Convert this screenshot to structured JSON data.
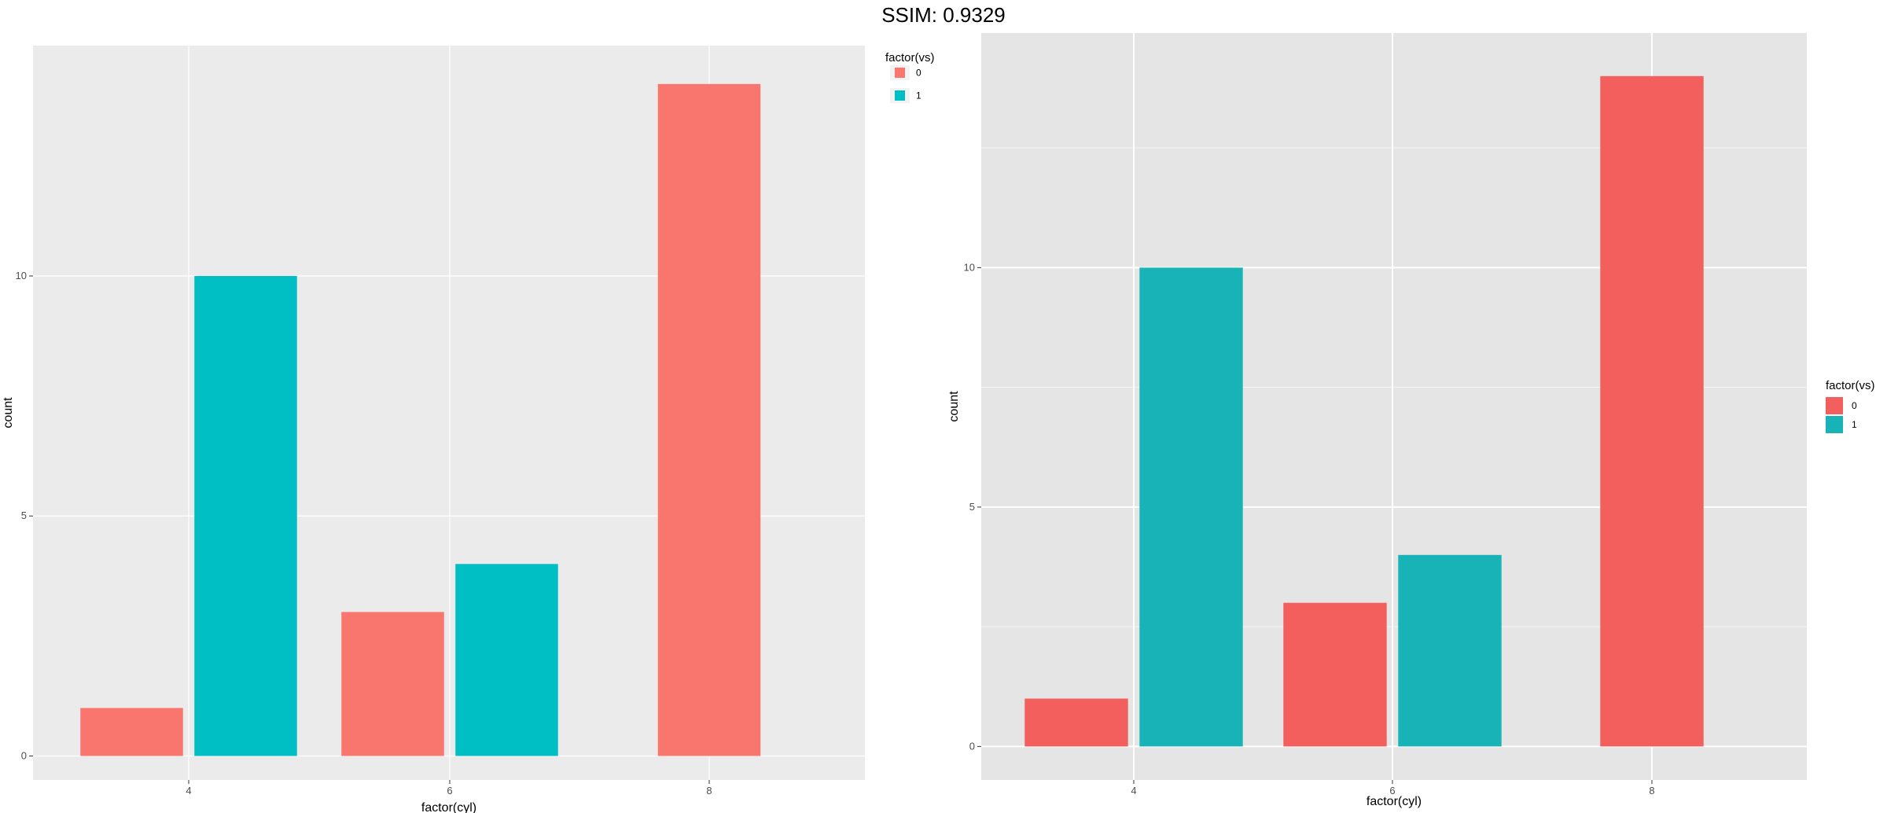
{
  "header": {
    "title": "SSIM: 0.9329"
  },
  "chart_data": [
    {
      "type": "bar",
      "categories": [
        "4",
        "6",
        "8"
      ],
      "series": [
        {
          "name": "0",
          "values": [
            1,
            3,
            14
          ],
          "color": "#F8766D"
        },
        {
          "name": "1",
          "values": [
            10,
            4,
            null
          ],
          "color": "#00BFC4"
        }
      ],
      "xlabel": "factor(cyl)",
      "ylabel": "count",
      "yticks": [
        0,
        5,
        10
      ],
      "ylim": [
        -0.5,
        14.8
      ],
      "legend": {
        "title": "factor(vs)",
        "labels": [
          "0",
          "1"
        ],
        "placement": "top-right"
      },
      "grid": true,
      "background": "#EBEBEB",
      "grid_color": "#FFFFFF"
    },
    {
      "type": "bar",
      "categories": [
        "4",
        "6",
        "8"
      ],
      "series": [
        {
          "name": "0",
          "values": [
            1,
            3,
            14
          ],
          "color": "#F25F5C"
        },
        {
          "name": "1",
          "values": [
            10,
            4,
            null
          ],
          "color": "#18B3B7"
        }
      ],
      "xlabel": "factor(cyl)",
      "ylabel": "count",
      "yticks": [
        0,
        5,
        10
      ],
      "ylim": [
        -0.7,
        14.9
      ],
      "legend": {
        "title": "factor(vs)",
        "labels": [
          "0",
          "1"
        ],
        "placement": "right"
      },
      "grid": true,
      "background": "#E5E5E5",
      "grid_color": "#FFFFFF"
    }
  ]
}
